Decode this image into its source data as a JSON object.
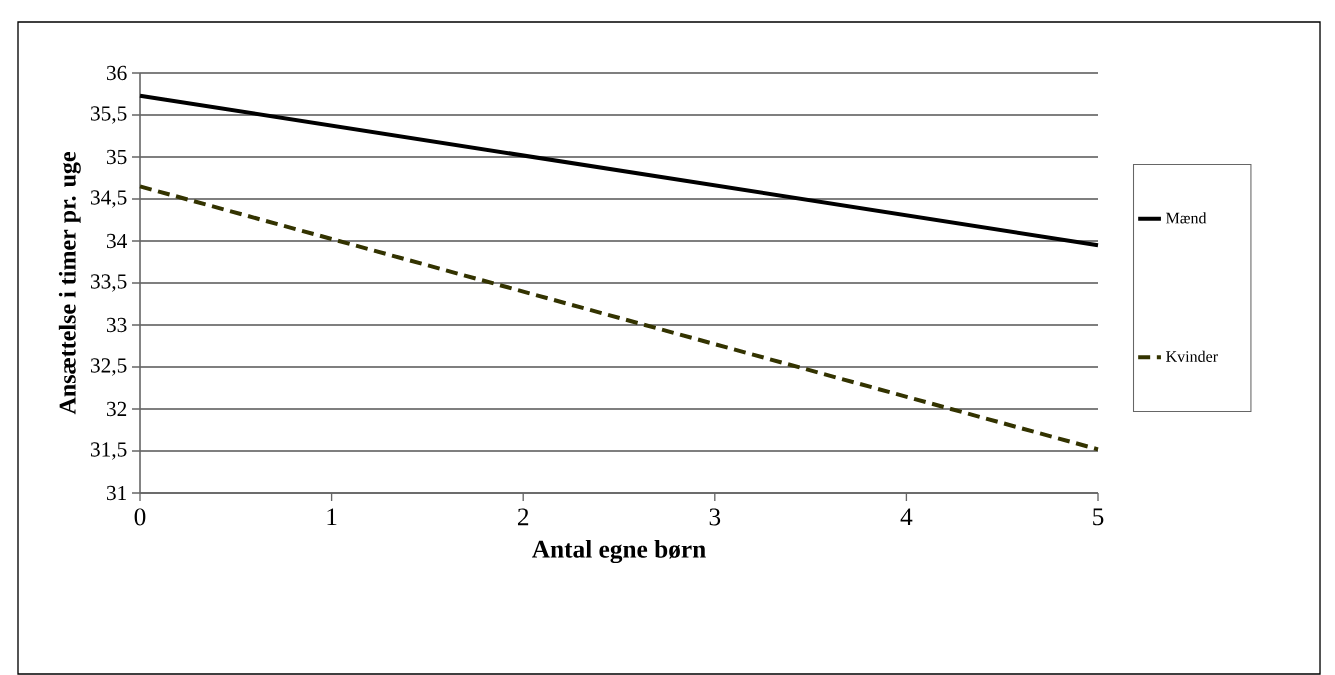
{
  "chart_data": {
    "type": "line",
    "xlabel": "Antal egne børn",
    "ylabel": "Ansættelse i timer pr.  uge",
    "xlim": [
      0,
      5
    ],
    "xticks": [
      0,
      1,
      2,
      3,
      4,
      5
    ],
    "ylim": [
      31,
      36
    ],
    "yticks": [
      31,
      {
        "value": 31.5,
        "label": "31,5"
      },
      32,
      {
        "value": 32.5,
        "label": "32,5"
      },
      33,
      {
        "value": 33.5,
        "label": "33,5"
      },
      34,
      {
        "value": 34.5,
        "label": "34,5"
      },
      35,
      {
        "value": 35.5,
        "label": "35,5"
      },
      36
    ],
    "grid": "y",
    "legend": "right",
    "marker": "none",
    "x": [
      0,
      5
    ],
    "series": [
      {
        "name": "Mænd",
        "color": "#000000",
        "line_style": "solid",
        "values": [
          35.73,
          33.95
        ]
      },
      {
        "name": "Kvinder",
        "color": "#333300",
        "line_style": "dashed",
        "values": [
          34.65,
          31.52
        ]
      }
    ]
  }
}
